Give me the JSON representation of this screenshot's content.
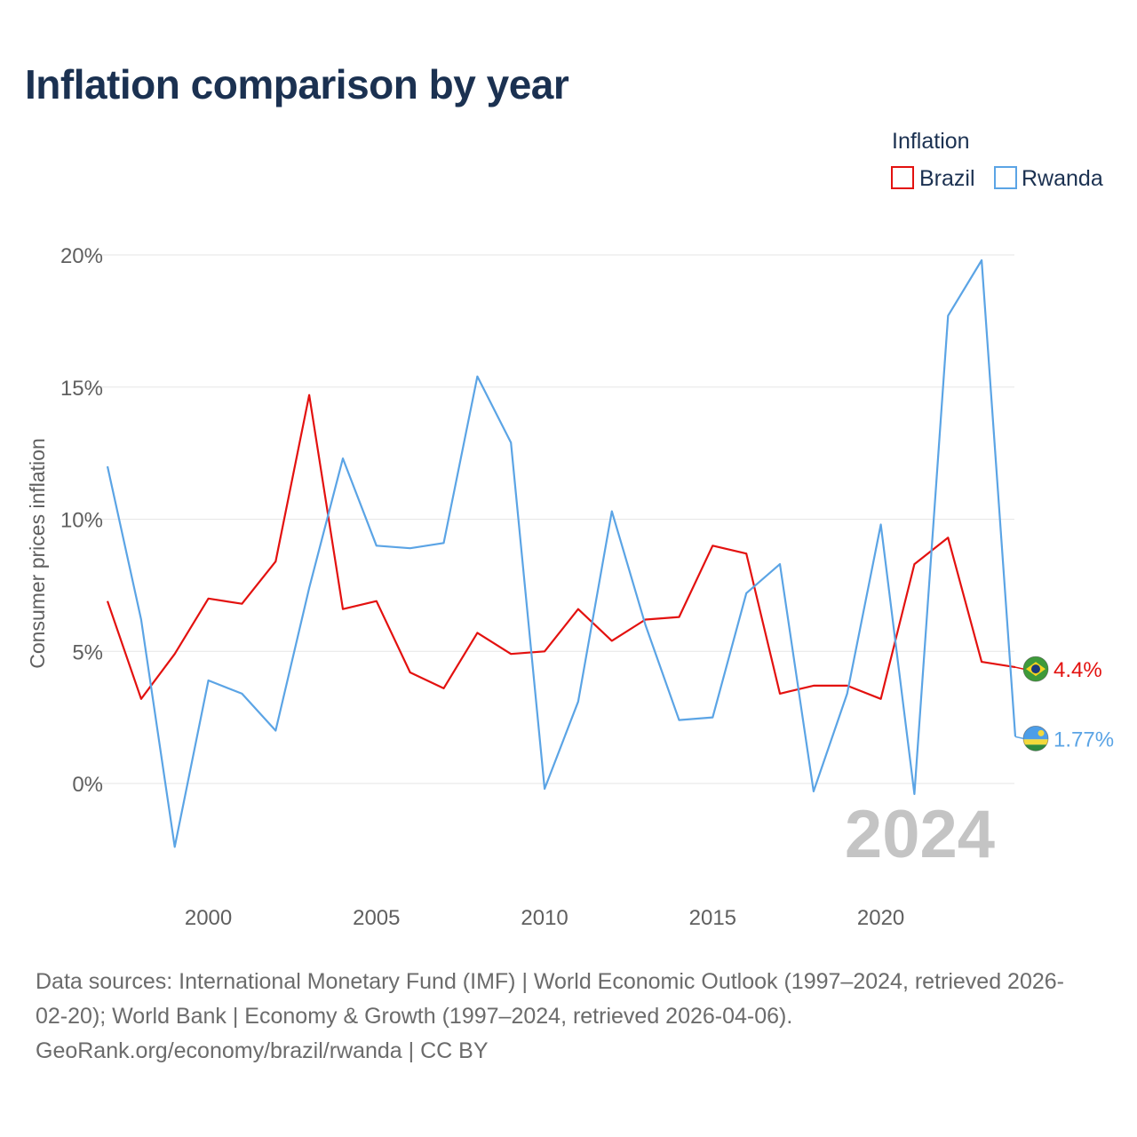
{
  "chart_data": {
    "type": "line",
    "title": "Inflation comparison by year",
    "ylabel": "Consumer prices inflation",
    "xlabel": "",
    "legend_title": "Inflation",
    "legend_position": "top-right",
    "xlim": [
      1997,
      2024
    ],
    "ylim": [
      -4,
      20.5
    ],
    "x_ticks": [
      2000,
      2005,
      2010,
      2015,
      2020
    ],
    "y_ticks": [
      0,
      5,
      10,
      15,
      20
    ],
    "y_tick_suffix": "%",
    "year_watermark": "2024",
    "x": [
      1997,
      1998,
      1999,
      2000,
      2001,
      2002,
      2003,
      2004,
      2005,
      2006,
      2007,
      2008,
      2009,
      2010,
      2011,
      2012,
      2013,
      2014,
      2015,
      2016,
      2017,
      2018,
      2019,
      2020,
      2021,
      2022,
      2023,
      2024
    ],
    "series": [
      {
        "name": "Brazil",
        "color": "#e3110f",
        "end_label": "4.4%",
        "flag": "brazil-flag",
        "values": [
          6.9,
          3.2,
          4.9,
          7.0,
          6.8,
          8.4,
          14.7,
          6.6,
          6.9,
          4.2,
          3.6,
          5.7,
          4.9,
          5.0,
          6.6,
          5.4,
          6.2,
          6.3,
          9.0,
          8.7,
          3.4,
          3.7,
          3.7,
          3.2,
          8.3,
          9.3,
          4.6,
          4.4
        ]
      },
      {
        "name": "Rwanda",
        "color": "#5ba4e5",
        "end_label": "1.77%",
        "flag": "rwanda-flag",
        "values": [
          12.0,
          6.2,
          -2.4,
          3.9,
          3.4,
          2.0,
          7.4,
          12.3,
          9.0,
          8.9,
          9.1,
          15.4,
          12.9,
          -0.2,
          3.1,
          10.3,
          6.0,
          2.4,
          2.5,
          7.2,
          8.3,
          -0.3,
          3.4,
          9.8,
          -0.4,
          17.7,
          19.8,
          1.77
        ]
      }
    ]
  },
  "footer": {
    "line1": "Data sources: International Monetary Fund (IMF) | World Economic Outlook (1997–2024, retrieved 2026-",
    "line2": "02-20); World Bank | Economy & Growth (1997–2024, retrieved 2026-04-06).",
    "line3": "GeoRank.org/economy/brazil/rwanda | CC BY"
  }
}
